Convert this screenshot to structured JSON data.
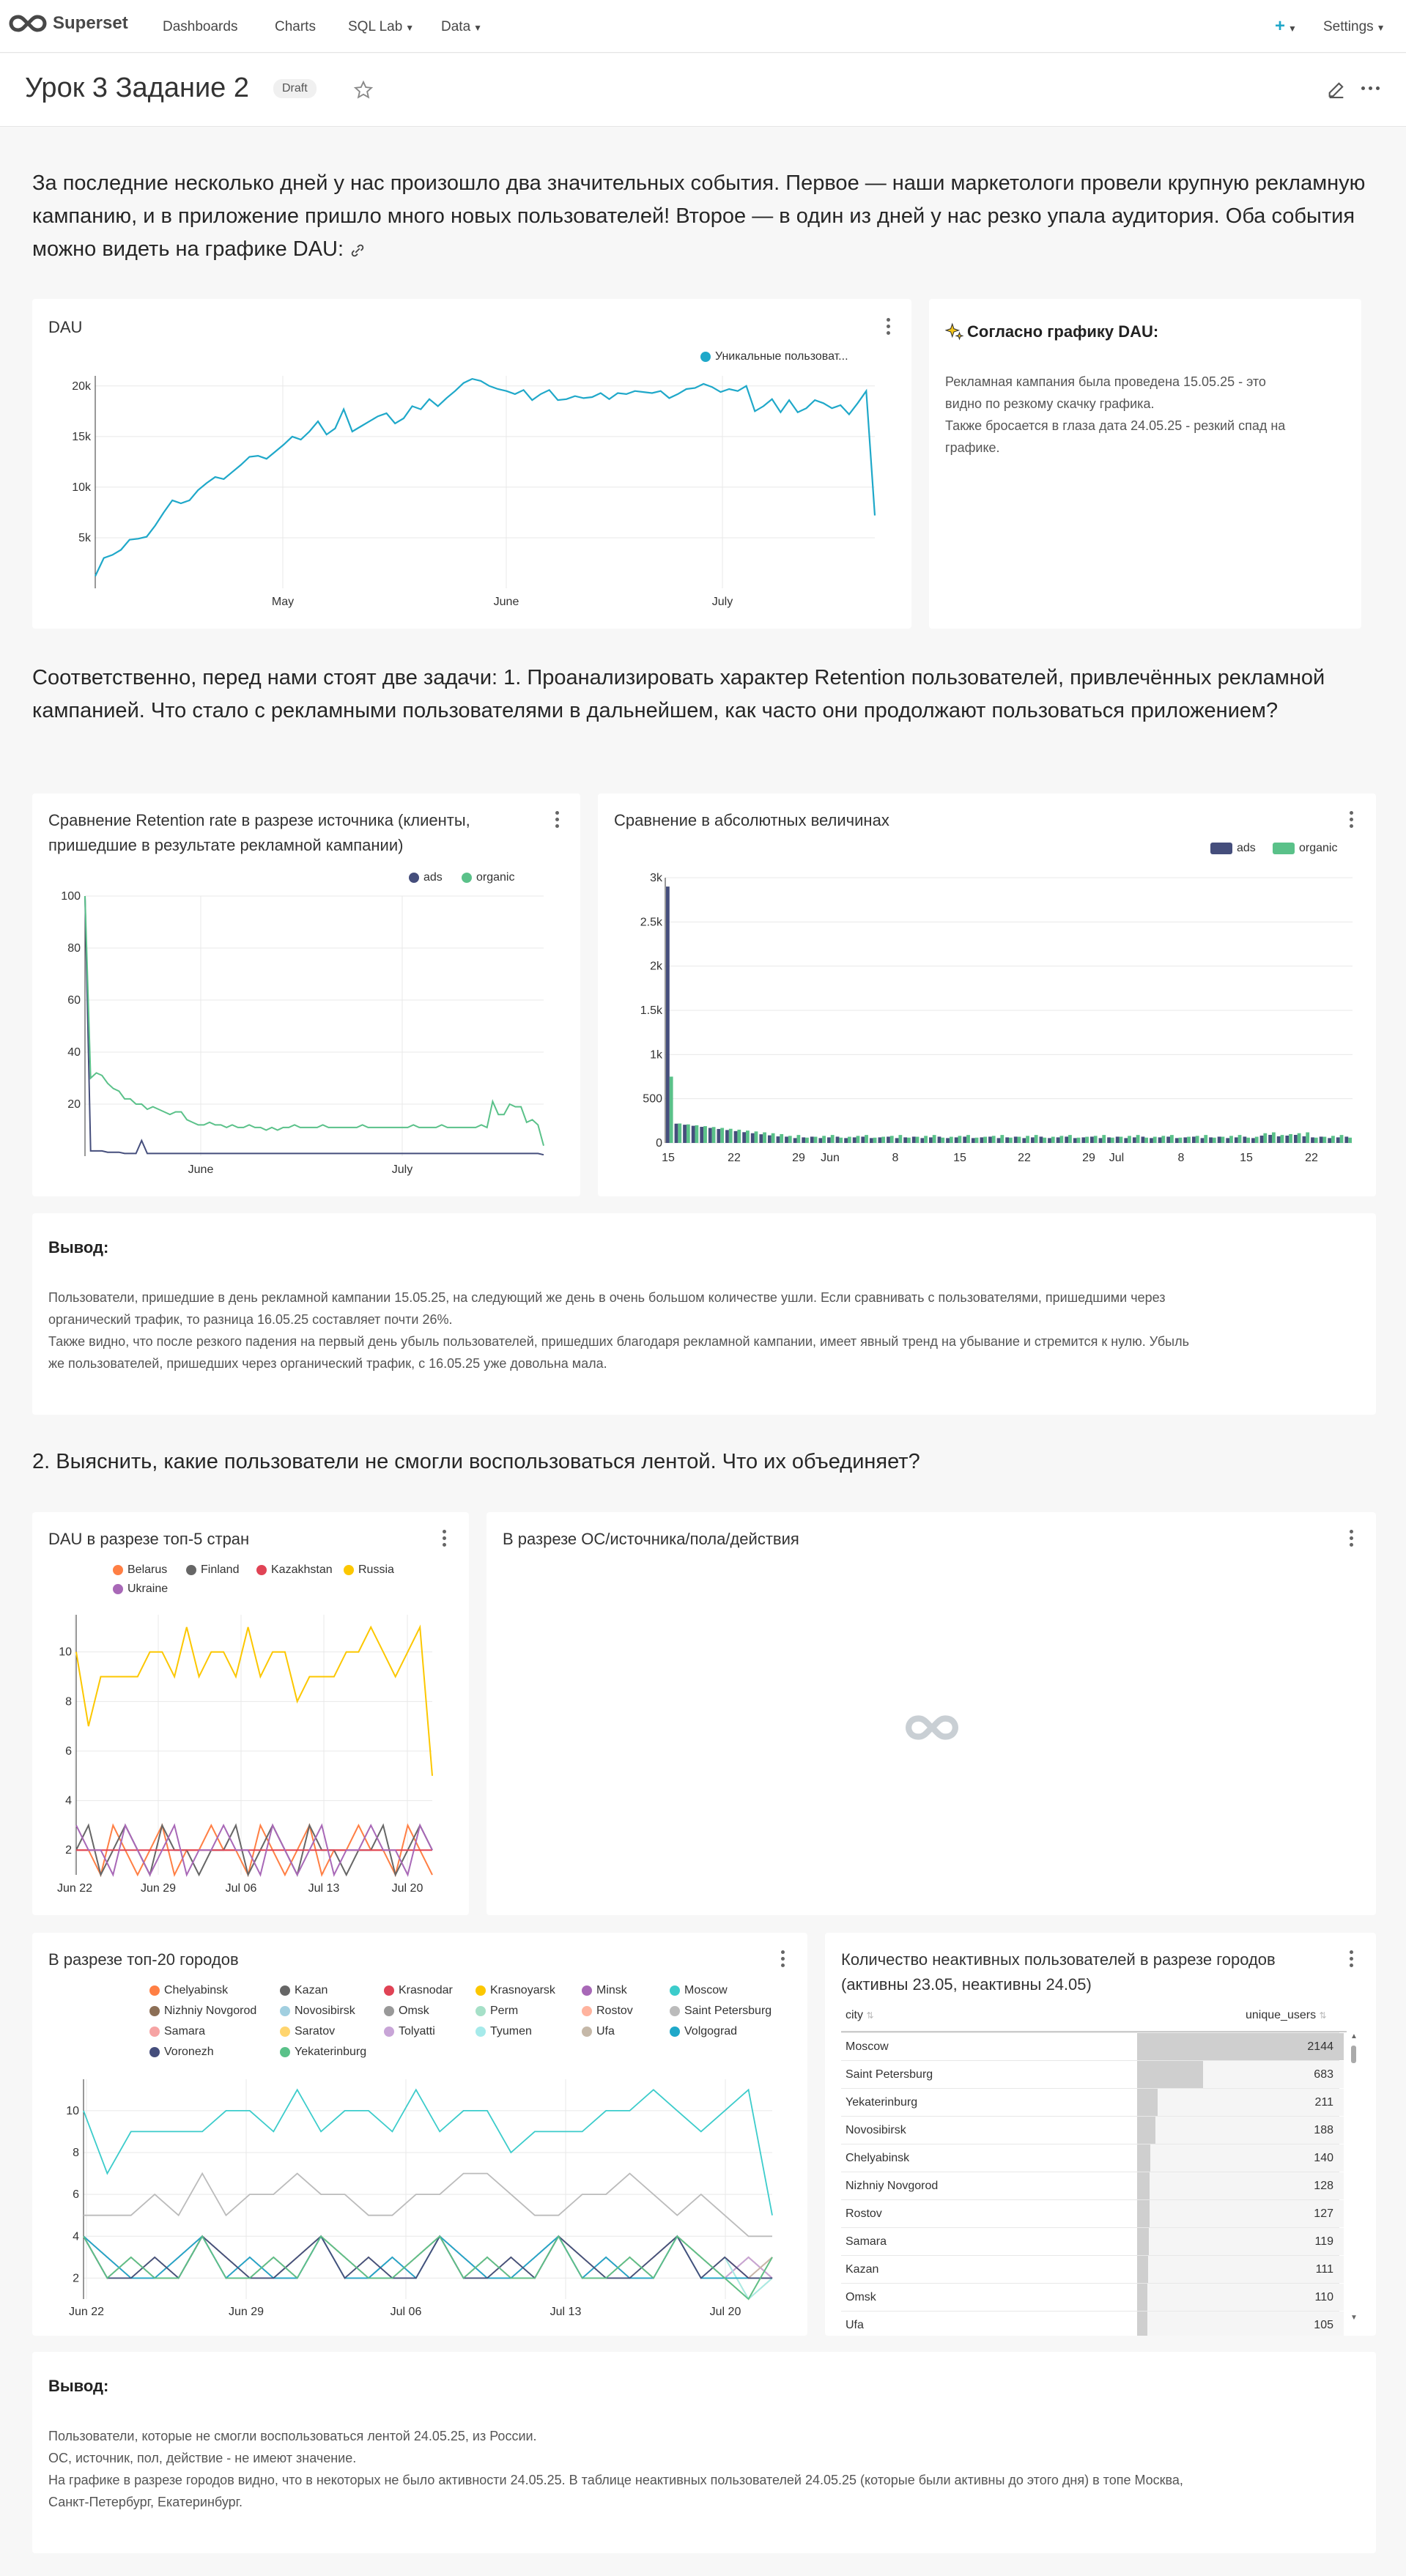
{
  "nav": {
    "brand": "Superset",
    "items": [
      {
        "label": "Dashboards"
      },
      {
        "label": "Charts"
      },
      {
        "label": "SQL Lab"
      },
      {
        "label": "Data"
      }
    ],
    "plus": "+",
    "settings": "Settings"
  },
  "dashboard": {
    "title": "Урок 3 Задание 2",
    "badge": "Draft"
  },
  "markdown": {
    "intro": "За последние несколько дней у нас произошло два значительных события. Первое — наши маркетологи провели крупную рекламную кампанию, и в приложение пришло много новых пользователей! Второе — в один из дней у нас резко упала аудитория. Оба события можно видеть на графике DAU:",
    "task1": "Соответственно, перед нами стоят две задачи: 1. Проанализировать характер Retention пользователей, привлечённых рекламной кампанией. Что стало с рекламными пользователями в дальнейшем, как часто они продолжают пользоваться приложением?",
    "task2": "2. Выяснить, какие пользователи не смогли воспользоваться лентой. Что их объединяет?"
  },
  "dau_card": {
    "title": "DAU",
    "legend": "Уникальные пользоват..."
  },
  "note_card": {
    "title": "Согласно графику DAU:",
    "lines": [
      "Рекламная кампания была проведена 15.05.25 - это",
      "видно по резкому скачку графика.",
      "Также бросается в глаза дата 24.05.25 - резкий спад на",
      "графике."
    ]
  },
  "retention_card": {
    "title1": "Сравнение Retention rate в разрезе источника (клиенты,",
    "title2": "пришедшие в результате рекламной кампании)"
  },
  "abs_card": {
    "title": "Сравнение в абсолютных величинах"
  },
  "conclusion1": {
    "title": "Вывод:",
    "lines": [
      "Пользователи, пришедшие в день рекламной кампании 15.05.25, на следующий же день в очень большом количестве ушли. Если сравнивать с пользователями, пришедшими через",
      "органический трафик, то разница 16.05.25 составляет почти 26%.",
      "Также видно, что после резкого падения на первый день убыль пользователей, пришедших благодаря рекламной кампании, имеет явный тренд на убывание и стремится к нулю. Убыль",
      "же пользователей, пришедших через органический трафик, с 16.05.25 уже довольна мала."
    ]
  },
  "countries_card": {
    "title": "DAU в разрезе топ-5 стран"
  },
  "os_card": {
    "title": "В разрезе ОС/источника/пола/действия"
  },
  "cities_card": {
    "title": "В разрезе топ-20 городов"
  },
  "inactive_card": {
    "title1": "Количество неактивных пользователей в разрезе городов",
    "title2": "(активны 23.05, неактивны 24.05)",
    "col_city": "city",
    "col_users": "unique_users",
    "rows": [
      {
        "city": "Moscow",
        "users": "2144"
      },
      {
        "city": "Saint Petersburg",
        "users": "683"
      },
      {
        "city": "Yekaterinburg",
        "users": "211"
      },
      {
        "city": "Novosibirsk",
        "users": "188"
      },
      {
        "city": "Chelyabinsk",
        "users": "140"
      },
      {
        "city": "Nizhniy Novgorod",
        "users": "128"
      },
      {
        "city": "Rostov",
        "users": "127"
      },
      {
        "city": "Samara",
        "users": "119"
      },
      {
        "city": "Kazan",
        "users": "111"
      },
      {
        "city": "Omsk",
        "users": "110"
      },
      {
        "city": "Ufa",
        "users": "105"
      }
    ]
  },
  "conclusion2": {
    "title": "Вывод:",
    "lines": [
      "Пользователи, которые не смогли воспользоваться лентой 24.05.25, из России.",
      "ОС, источник, пол, действие - не имеют значение.",
      "На графике в разрезе городов видно, что в некоторых не было активности 24.05.25. В таблице неактивных пользователей 24.05.25 (которые были активны до этого дня) в топе Москва,",
      "Санкт-Петербург, Екатеринбург."
    ]
  },
  "chart_data": [
    {
      "type": "line",
      "title": "DAU",
      "series": [
        {
          "name": "Уникальные пользоват...",
          "color": "#1FA8C9",
          "values": [
            1200,
            3000,
            3300,
            3800,
            4800,
            4900,
            5100,
            6200,
            7500,
            8700,
            8400,
            8700,
            9700,
            10400,
            11000,
            10800,
            11500,
            12200,
            13000,
            13100,
            12800,
            13500,
            14200,
            15000,
            14700,
            15500,
            16500,
            15200,
            15800,
            17700,
            15500,
            16000,
            16500,
            17000,
            17300,
            16300,
            16800,
            18000,
            17700,
            18700,
            18000,
            18800,
            19500,
            20300,
            20700,
            20500,
            20000,
            19700,
            19500,
            19200,
            19600,
            18600,
            19200,
            19600,
            18600,
            18700,
            19000,
            18800,
            18900,
            19300,
            18700,
            19300,
            19200,
            19500,
            19400,
            19300,
            19500,
            18800,
            19200,
            19700,
            19800,
            20200,
            19900,
            19400,
            19700,
            19500,
            20000,
            17500,
            18000,
            18700,
            17400,
            18600,
            17400,
            17800,
            18600,
            18300,
            17800,
            18100,
            17200,
            18300,
            19500,
            7200
          ]
        }
      ],
      "x_ticks": [
        "May",
        "June",
        "July"
      ],
      "y_ticks": [
        "5k",
        "10k",
        "15k",
        "20k"
      ],
      "ylim": [
        0,
        21000
      ]
    },
    {
      "type": "line",
      "title": "Сравнение Retention rate в разрезе источника (клиенты, пришедшие в результате рекламной кампании)",
      "series": [
        {
          "name": "ads",
          "color": "#454E7C",
          "values": [
            100,
            2,
            2,
            2,
            1.5,
            1.5,
            1.5,
            1,
            1,
            1,
            6,
            1,
            1,
            1,
            1,
            1,
            1,
            1,
            1,
            1,
            1,
            1,
            1,
            1,
            1,
            1,
            1,
            1,
            1,
            1,
            1,
            1,
            1,
            1,
            1,
            1,
            1,
            1,
            1,
            1,
            1,
            1,
            1,
            1,
            1,
            1,
            1,
            1,
            1,
            1,
            1,
            1,
            1,
            1,
            1,
            1,
            1,
            1,
            1,
            1,
            1,
            1,
            1,
            1,
            1,
            1,
            1,
            1,
            1,
            1,
            1,
            1,
            1,
            1,
            1,
            1,
            1,
            1,
            1,
            1,
            1,
            0.5
          ]
        },
        {
          "name": "organic",
          "color": "#5AC189",
          "values": [
            100,
            30,
            32,
            31,
            28,
            26,
            25,
            22,
            22,
            20,
            20,
            18,
            19,
            18,
            17,
            16,
            17,
            17,
            14,
            13,
            12,
            12,
            13,
            12,
            12,
            11,
            12,
            11,
            11,
            12,
            11,
            11,
            10,
            11,
            10,
            11,
            11,
            12,
            11,
            11,
            11,
            11,
            12,
            11,
            11,
            11,
            11,
            11,
            11,
            12,
            11,
            11,
            11,
            11,
            11,
            11,
            11,
            11,
            12,
            11,
            11,
            11,
            11,
            12,
            11,
            11,
            11,
            11,
            11,
            11,
            12,
            11,
            21,
            16,
            16,
            20,
            19,
            19,
            13,
            14,
            12,
            4
          ]
        }
      ],
      "x_ticks": [
        "June",
        "July"
      ],
      "y_ticks": [
        "20",
        "40",
        "60",
        "80",
        "100"
      ],
      "ylim": [
        0,
        100
      ]
    },
    {
      "type": "bar",
      "title": "Сравнение в абсолютных величинах",
      "series": [
        {
          "name": "ads",
          "color": "#454E7C"
        },
        {
          "name": "organic",
          "color": "#5AC189"
        }
      ],
      "peaks": {
        "ads": 2900,
        "organic": 750
      },
      "x_ticks": [
        "15",
        "22",
        "29",
        "Jun",
        "8",
        "15",
        "22",
        "29",
        "Jul",
        "8",
        "15",
        "22"
      ],
      "y_ticks": [
        "0",
        "500",
        "1k",
        "1.5k",
        "2k",
        "2.5k",
        "3k"
      ],
      "ylim": [
        0,
        3000
      ]
    },
    {
      "type": "line",
      "title": "DAU в разрезе топ-5 стран",
      "series": [
        {
          "name": "Belarus",
          "color": "#FF7F44"
        },
        {
          "name": "Finland",
          "color": "#666666"
        },
        {
          "name": "Kazakhstan",
          "color": "#E04355"
        },
        {
          "name": "Russia",
          "color": "#FCC700",
          "values": [
            10,
            7,
            9,
            9,
            9,
            9,
            10,
            10,
            9,
            11,
            9,
            10,
            10,
            9,
            11,
            9,
            10,
            10,
            8,
            9,
            9,
            9,
            10,
            10,
            11,
            10,
            9,
            10,
            11,
            5
          ]
        },
        {
          "name": "Ukraine",
          "color": "#A868B7"
        }
      ],
      "x_ticks": [
        "Jun 22",
        "Jun 29",
        "Jul 06",
        "Jul 13",
        "Jul 20"
      ],
      "y_ticks": [
        "2",
        "4",
        "6",
        "8",
        "10"
      ],
      "ylim": [
        1,
        11.5
      ]
    },
    {
      "type": "line",
      "title": "В разрезе топ-20 городов",
      "series": [
        {
          "name": "Chelyabinsk",
          "color": "#FF7F44"
        },
        {
          "name": "Kazan",
          "color": "#666666"
        },
        {
          "name": "Krasnodar",
          "color": "#E04355"
        },
        {
          "name": "Krasnoyarsk",
          "color": "#FCC700"
        },
        {
          "name": "Minsk",
          "color": "#A868B7"
        },
        {
          "name": "Moscow",
          "color": "#3CCCCB",
          "values": [
            10,
            7,
            9,
            9,
            9,
            9,
            10,
            10,
            9,
            11,
            9,
            10,
            10,
            9,
            11,
            9,
            10,
            10,
            8,
            9,
            9,
            9,
            10,
            10,
            11,
            10,
            9,
            10,
            11,
            5
          ]
        },
        {
          "name": "Nizhniy Novgorod",
          "color": "#8C6F56"
        },
        {
          "name": "Novosibirsk",
          "color": "#A1CFE0"
        },
        {
          "name": "Omsk",
          "color": "#999999"
        },
        {
          "name": "Perm",
          "color": "#A6E0C8"
        },
        {
          "name": "Rostov",
          "color": "#FFB39E"
        },
        {
          "name": "Saint Petersburg",
          "color": "#BBBBBB",
          "values": [
            5,
            5,
            5,
            6,
            5,
            7,
            5,
            6,
            6,
            7,
            6,
            6,
            5,
            5,
            6,
            6,
            7,
            7,
            6,
            5,
            5,
            6,
            6,
            7,
            6,
            5,
            6,
            5,
            4,
            4
          ]
        },
        {
          "name": "Samara",
          "color": "#F6A3A3"
        },
        {
          "name": "Saratov",
          "color": "#FFD56E"
        },
        {
          "name": "Tolyatti",
          "color": "#C8A5D7"
        },
        {
          "name": "Tyumen",
          "color": "#A6EAEA"
        },
        {
          "name": "Ufa",
          "color": "#C5B8A8"
        },
        {
          "name": "Volgograd",
          "color": "#1FA8C9"
        },
        {
          "name": "Voronezh",
          "color": "#454E7C"
        },
        {
          "name": "Yekaterinburg",
          "color": "#5AC189"
        }
      ],
      "x_ticks": [
        "Jun 22",
        "Jun 29",
        "Jul 06",
        "Jul 13",
        "Jul 20"
      ],
      "y_ticks": [
        "2",
        "4",
        "6",
        "8",
        "10"
      ],
      "ylim": [
        1,
        11.5
      ]
    }
  ]
}
